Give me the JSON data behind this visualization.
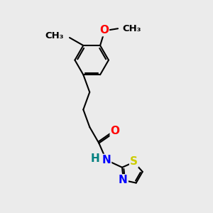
{
  "bg_color": "#ebebeb",
  "bond_color": "#000000",
  "bond_width": 1.5,
  "atom_colors": {
    "O": "#ff0000",
    "N": "#0000ff",
    "S": "#cccc00",
    "H": "#008080",
    "C": "#000000"
  },
  "font_size_atom": 11,
  "font_size_small": 9.5
}
